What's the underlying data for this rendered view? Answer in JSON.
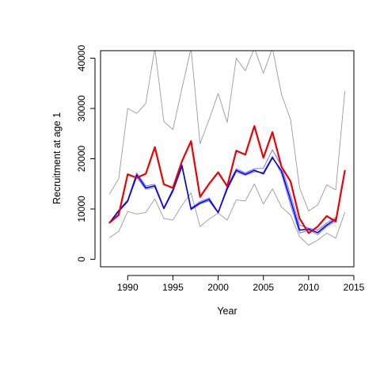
{
  "chart_data": {
    "type": "line",
    "title": "",
    "xlabel": "Year",
    "ylabel": "Recruitment at age 1",
    "xlim": [
      1987,
      2015
    ],
    "ylim": [
      -1500,
      41500
    ],
    "xticks": [
      1990,
      1995,
      2000,
      2005,
      2010,
      2015
    ],
    "yticks": [
      0,
      10000,
      20000,
      30000,
      40000
    ],
    "grid": false,
    "legend": "none",
    "series": [
      {
        "color": "#999999",
        "width": 0.9,
        "x": [
          1988,
          1989,
          1990,
          1991,
          1992,
          1993,
          1994,
          1995,
          1996,
          1997,
          1998,
          1999,
          2000,
          2001,
          2002,
          2003,
          2004,
          2005,
          2006,
          2007,
          2008,
          2009,
          2010,
          2011,
          2012,
          2013,
          2014
        ],
        "values": [
          13000,
          16000,
          30000,
          29000,
          31000,
          42000,
          27400,
          25800,
          34000,
          42000,
          23000,
          27800,
          33000,
          27200,
          40000,
          37500,
          42000,
          37000,
          42000,
          32800,
          27800,
          14200,
          9600,
          10800,
          14800,
          13800,
          33400
        ]
      },
      {
        "color": "#999999",
        "width": 0.9,
        "x": [
          1988,
          1989,
          1990,
          1991,
          1992,
          1993,
          1994,
          1995,
          1996,
          1997,
          1998,
          1999,
          2000,
          2001,
          2002,
          2003,
          2004,
          2005,
          2006,
          2007,
          2008,
          2009,
          2010,
          2011,
          2012,
          2013,
          2014
        ],
        "values": [
          4300,
          5500,
          9500,
          9000,
          9300,
          12000,
          8100,
          7800,
          10700,
          13200,
          6500,
          8000,
          9200,
          7800,
          11800,
          11600,
          15000,
          11000,
          14000,
          10400,
          8800,
          4500,
          2800,
          3800,
          5200,
          4200,
          9300
        ]
      },
      {
        "color": "#6666ff",
        "width": 0.9,
        "x": [
          1988,
          1989,
          1990,
          1991,
          1992,
          1993,
          1994,
          1995,
          1996,
          1997,
          1998,
          1999,
          2000,
          2001,
          2002,
          2003,
          2004,
          2005,
          2006,
          2007,
          2008,
          2009,
          2010,
          2011,
          2012,
          2013,
          2014
        ],
        "values": [
          7300,
          9800,
          11800,
          17200,
          14600,
          14900,
          10300,
          14000,
          18900,
          10200,
          11500,
          12200,
          9400,
          14500,
          18000,
          17200,
          18000,
          18100,
          21800,
          18500,
          12800,
          6800,
          6200,
          5800,
          7200,
          8400,
          null
        ]
      },
      {
        "color": "#6666ff",
        "width": 0.9,
        "x": [
          1988,
          1989,
          1990,
          1991,
          1992,
          1993,
          1994,
          1995,
          1996,
          1997,
          1998,
          1999,
          2000,
          2001,
          2002,
          2003,
          2004,
          2005,
          2006,
          2007,
          2008,
          2009,
          2010,
          2011,
          2012,
          2013,
          2014
        ],
        "values": [
          7200,
          9400,
          11400,
          16300,
          13900,
          14300,
          10000,
          13400,
          18300,
          9800,
          11000,
          11600,
          9200,
          13800,
          17400,
          16700,
          17400,
          17300,
          20500,
          17000,
          10800,
          5200,
          5800,
          4900,
          6500,
          7600,
          null
        ]
      },
      {
        "color": "#0000ee",
        "width": 1.6,
        "x": [
          1988,
          1989,
          1990,
          1991,
          1992,
          1993,
          1994,
          1995,
          1996,
          1997,
          1998,
          1999,
          2000,
          2001,
          2002,
          2003,
          2004,
          2005,
          2006,
          2007,
          2008,
          2009,
          2010,
          2011,
          2012,
          2013,
          2014
        ],
        "values": [
          7300,
          9600,
          11600,
          16800,
          14200,
          14600,
          10100,
          13700,
          18600,
          10000,
          11200,
          11900,
          9300,
          14100,
          17700,
          16900,
          17700,
          17000,
          20200,
          17600,
          11800,
          5800,
          6000,
          5300,
          6800,
          8000,
          null
        ]
      },
      {
        "color": "#ee0000",
        "width": 2.2,
        "x": [
          1988,
          1989,
          1990,
          1991,
          1992,
          1993,
          1994,
          1995,
          1996,
          1997,
          1998,
          1999,
          2000,
          2001,
          2002,
          2003,
          2004,
          2005,
          2006,
          2007,
          2008,
          2009,
          2010,
          2011,
          2012,
          2013,
          2014
        ],
        "values": [
          7300,
          8800,
          16900,
          16200,
          17000,
          22300,
          14900,
          14200,
          19500,
          23500,
          12400,
          15000,
          17300,
          14500,
          21600,
          20800,
          26500,
          20200,
          25300,
          18400,
          15500,
          8100,
          5200,
          6500,
          8600,
          7500,
          17600
        ]
      }
    ]
  }
}
